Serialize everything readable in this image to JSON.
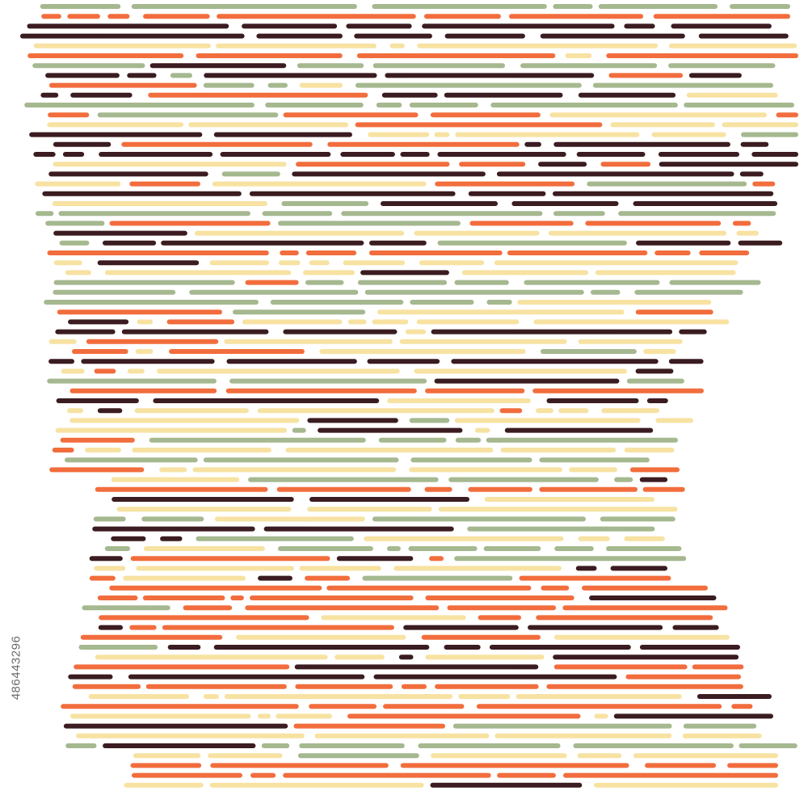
{
  "artwork": {
    "description_label": "",
    "palette": {
      "cream": "#f7e2a2",
      "orange": "#f26d3d",
      "sage": "#a5b88f",
      "maroon": "#3b1c20"
    },
    "background_color": "#ffffff"
  },
  "watermark": {
    "stock_id": "486443296"
  }
}
